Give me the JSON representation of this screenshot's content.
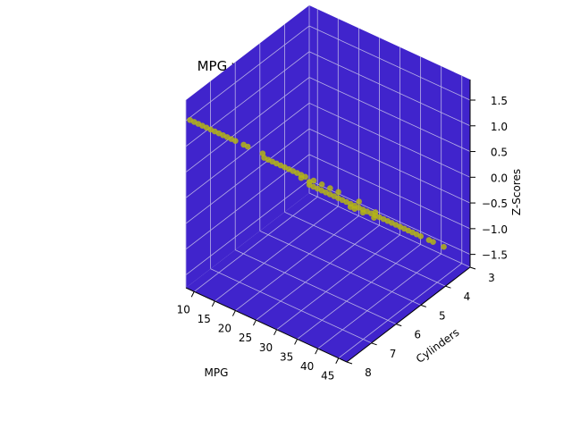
{
  "chart_data": {
    "type": "scatter",
    "projection": "3d",
    "title": "MPG v. Cylinders v. Z-Scores",
    "xlabel": "MPG",
    "ylabel": "Cylinders",
    "zlabel": "Z-Scores",
    "xticks": [
      10,
      15,
      20,
      25,
      30,
      35,
      40,
      45
    ],
    "yticks": [
      3,
      4,
      5,
      6,
      7,
      8
    ],
    "zticks": [
      -1.5,
      -1.0,
      -0.5,
      0.0,
      0.5,
      1.0,
      1.5
    ],
    "ztick_labels": [
      "−1.5",
      "−1.0",
      "−0.5",
      "0.0",
      "0.5",
      "1.0",
      "1.5"
    ],
    "xlim": [
      8,
      47
    ],
    "ylim": [
      3,
      8
    ],
    "zlim": [
      -1.75,
      1.9
    ],
    "pane_color": "#4024cc",
    "marker_color": "#b5b515",
    "grid": true,
    "series": [
      {
        "points": [
          {
            "x": 9,
            "y": 8,
            "z": 1.55
          },
          {
            "x": 10,
            "y": 8,
            "z": 1.55
          },
          {
            "x": 11,
            "y": 8,
            "z": 1.55
          },
          {
            "x": 12,
            "y": 8,
            "z": 1.55
          },
          {
            "x": 13,
            "y": 8,
            "z": 1.55
          },
          {
            "x": 14,
            "y": 8,
            "z": 1.55
          },
          {
            "x": 15,
            "y": 8,
            "z": 1.55
          },
          {
            "x": 16,
            "y": 8,
            "z": 1.55
          },
          {
            "x": 17,
            "y": 8,
            "z": 1.55
          },
          {
            "x": 18,
            "y": 8,
            "z": 1.55
          },
          {
            "x": 19,
            "y": 8,
            "z": 1.55
          },
          {
            "x": 20,
            "y": 8,
            "z": 1.55
          },
          {
            "x": 22,
            "y": 8,
            "z": 1.55
          },
          {
            "x": 23,
            "y": 8,
            "z": 1.55
          },
          {
            "x": 26.6,
            "y": 8,
            "z": 1.55
          },
          {
            "x": 15,
            "y": 6,
            "z": 0.3
          },
          {
            "x": 16,
            "y": 6,
            "z": 0.3
          },
          {
            "x": 17,
            "y": 6,
            "z": 0.3
          },
          {
            "x": 18,
            "y": 6,
            "z": 0.3
          },
          {
            "x": 19,
            "y": 6,
            "z": 0.3
          },
          {
            "x": 20,
            "y": 6,
            "z": 0.3
          },
          {
            "x": 21,
            "y": 6,
            "z": 0.3
          },
          {
            "x": 22,
            "y": 6,
            "z": 0.3
          },
          {
            "x": 23,
            "y": 6,
            "z": 0.3
          },
          {
            "x": 24,
            "y": 6,
            "z": 0.3
          },
          {
            "x": 25,
            "y": 6,
            "z": 0.3
          },
          {
            "x": 27,
            "y": 6,
            "z": 0.3
          },
          {
            "x": 29,
            "y": 6,
            "z": 0.3
          },
          {
            "x": 31,
            "y": 6,
            "z": 0.3
          },
          {
            "x": 33,
            "y": 6,
            "z": 0.3
          },
          {
            "x": 38,
            "y": 6,
            "z": 0.3
          },
          {
            "x": 18,
            "y": 5,
            "z": -0.35
          },
          {
            "x": 20,
            "y": 5,
            "z": -0.35
          },
          {
            "x": 36,
            "y": 5,
            "z": -0.35
          },
          {
            "x": 14,
            "y": 4,
            "z": -1.0
          },
          {
            "x": 15,
            "y": 4,
            "z": -1.0
          },
          {
            "x": 16,
            "y": 4,
            "z": -1.0
          },
          {
            "x": 17,
            "y": 4,
            "z": -1.0
          },
          {
            "x": 18,
            "y": 4,
            "z": -1.0
          },
          {
            "x": 19,
            "y": 4,
            "z": -1.0
          },
          {
            "x": 20,
            "y": 4,
            "z": -1.0
          },
          {
            "x": 21,
            "y": 4,
            "z": -1.0
          },
          {
            "x": 22,
            "y": 4,
            "z": -1.0
          },
          {
            "x": 23,
            "y": 4,
            "z": -1.0
          },
          {
            "x": 24,
            "y": 4,
            "z": -1.0
          },
          {
            "x": 25,
            "y": 4,
            "z": -1.0
          },
          {
            "x": 26,
            "y": 4,
            "z": -1.0
          },
          {
            "x": 27,
            "y": 4,
            "z": -1.0
          },
          {
            "x": 28,
            "y": 4,
            "z": -1.0
          },
          {
            "x": 29,
            "y": 4,
            "z": -1.0
          },
          {
            "x": 30,
            "y": 4,
            "z": -1.0
          },
          {
            "x": 31,
            "y": 4,
            "z": -1.0
          },
          {
            "x": 32,
            "y": 4,
            "z": -1.0
          },
          {
            "x": 33,
            "y": 4,
            "z": -1.0
          },
          {
            "x": 34,
            "y": 4,
            "z": -1.0
          },
          {
            "x": 35,
            "y": 4,
            "z": -1.0
          },
          {
            "x": 36,
            "y": 4,
            "z": -1.0
          },
          {
            "x": 37,
            "y": 4,
            "z": -1.0
          },
          {
            "x": 38,
            "y": 4,
            "z": -1.0
          },
          {
            "x": 39,
            "y": 4,
            "z": -1.0
          },
          {
            "x": 40,
            "y": 4,
            "z": -1.0
          },
          {
            "x": 41,
            "y": 4,
            "z": -1.0
          },
          {
            "x": 43,
            "y": 4,
            "z": -1.0
          },
          {
            "x": 44,
            "y": 4,
            "z": -1.0
          },
          {
            "x": 46.6,
            "y": 4,
            "z": -1.0
          },
          {
            "x": 18,
            "y": 3,
            "z": -1.65
          },
          {
            "x": 19,
            "y": 3,
            "z": -1.65
          },
          {
            "x": 21,
            "y": 3,
            "z": -1.65
          },
          {
            "x": 23.7,
            "y": 3,
            "z": -1.65
          }
        ]
      }
    ]
  }
}
